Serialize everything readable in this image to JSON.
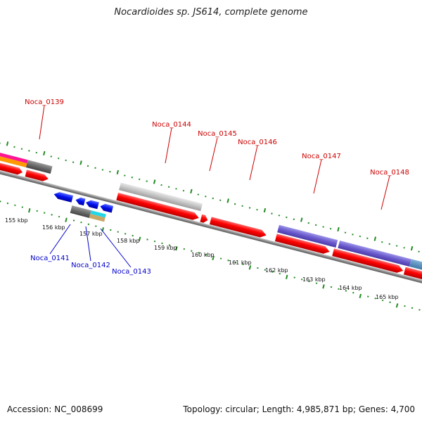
{
  "title": "Nocardioides sp. JS614, complete genome",
  "accession": "Accession: NC_008699",
  "summary": "Topology: circular; Length: 4,985,871 bp; Genes: 4,700",
  "colors": {
    "forward_label": "#cc0000",
    "reverse_label": "#0000cc",
    "tick": "#228b22",
    "backbone": "#777777"
  },
  "scale_labels": [
    "155 kbp",
    "156 kbp",
    "157 kbp",
    "158 kbp",
    "159 kbp",
    "160 kbp",
    "161 kbp",
    "162 kbp",
    "163 kbp",
    "164 kbp",
    "165 kbp"
  ],
  "forward_gene_labels": [
    "Noca_0139",
    "Noca_0144",
    "Noca_0145",
    "Noca_0146",
    "Noca_0147",
    "Noca_0148"
  ],
  "reverse_gene_labels": [
    "Noca_0141",
    "Noca_0142",
    "Noca_0143"
  ]
}
